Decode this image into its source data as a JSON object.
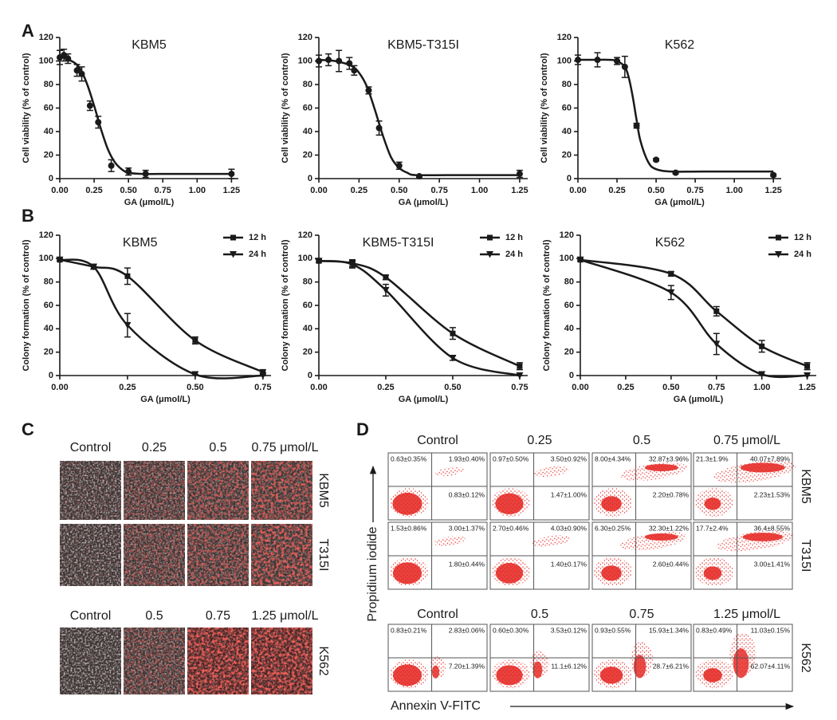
{
  "panel_labels": [
    "A",
    "B",
    "C",
    "D"
  ],
  "chart_data": [
    {
      "type": "scatter",
      "title": "KBM5",
      "x_label": "GA (μmol/L)",
      "y_label": "Cell viability (% of control)",
      "color": "#1a1a1a",
      "x": [
        0,
        0.03,
        0.06,
        0.125,
        0.16,
        0.22,
        0.28,
        0.375,
        0.5,
        0.625,
        1.25
      ],
      "values": [
        103,
        105,
        102,
        92,
        89,
        62,
        48,
        11,
        6,
        4,
        4
      ],
      "errors": [
        6,
        5,
        4,
        5,
        6,
        4,
        5,
        5,
        3,
        3,
        4
      ],
      "curve": {
        "x": [
          0,
          0.1,
          0.15,
          0.2,
          0.25,
          0.3,
          0.35,
          0.4,
          0.45,
          0.5,
          0.6,
          0.8,
          1.0,
          1.25
        ],
        "values": [
          104,
          99,
          93,
          80,
          62,
          42,
          25,
          14,
          8,
          5,
          4,
          4,
          4,
          4
        ]
      },
      "xlim": [
        0,
        1.3
      ],
      "ylim": [
        0,
        120
      ],
      "xticks": [
        {
          "value": 0,
          "label": "0.00"
        },
        {
          "value": 0.25,
          "label": "0.25"
        },
        {
          "value": 0.5,
          "label": "0.50"
        },
        {
          "value": 0.75,
          "label": "0.75"
        },
        {
          "value": 1,
          "label": "1.00"
        },
        {
          "value": 1.25,
          "label": "1.25"
        }
      ],
      "yticks": [
        0,
        20,
        40,
        60,
        80,
        100,
        120
      ]
    },
    {
      "type": "scatter",
      "title": "KBM5-T315I",
      "x_label": "GA (μmol/L)",
      "y_label": "Cell viability (% of control)",
      "color": "#1a1a1a",
      "x": [
        0,
        0.06,
        0.125,
        0.19,
        0.22,
        0.31,
        0.375,
        0.5,
        0.625,
        1.25
      ],
      "values": [
        100,
        101,
        100,
        98,
        92,
        75,
        43,
        11,
        2,
        4
      ],
      "errors": [
        5,
        5,
        9,
        5,
        4,
        3,
        6,
        3,
        1,
        3
      ],
      "curve": {
        "x": [
          0,
          0.1,
          0.2,
          0.25,
          0.3,
          0.35,
          0.4,
          0.45,
          0.5,
          0.55,
          0.6,
          0.8,
          1.25
        ],
        "values": [
          101,
          100,
          96,
          90,
          78,
          58,
          36,
          18,
          9,
          5,
          3,
          3,
          3
        ]
      },
      "xlim": [
        0,
        1.3
      ],
      "ylim": [
        0,
        120
      ],
      "xticks": [
        {
          "value": 0,
          "label": "0.00"
        },
        {
          "value": 0.25,
          "label": "0.25"
        },
        {
          "value": 0.5,
          "label": "0.50"
        },
        {
          "value": 0.75,
          "label": "0.75"
        },
        {
          "value": 1,
          "label": "1.00"
        },
        {
          "value": 1.25,
          "label": "1.25"
        }
      ],
      "yticks": [
        0,
        20,
        40,
        60,
        80,
        100,
        120
      ]
    },
    {
      "type": "scatter",
      "title": "K562",
      "x_label": "GA (μmol/L)",
      "y_label": "Cell viability (% of control)",
      "color": "#1a1a1a",
      "x": [
        0,
        0.125,
        0.25,
        0.3,
        0.375,
        0.5,
        0.625,
        1.25
      ],
      "values": [
        101,
        101,
        100,
        95,
        45,
        16,
        5,
        3
      ],
      "errors": [
        4,
        6,
        3,
        9,
        2,
        1,
        1,
        1
      ],
      "curve": {
        "x": [
          0,
          0.1,
          0.2,
          0.25,
          0.3,
          0.325,
          0.35,
          0.375,
          0.4,
          0.45,
          0.5,
          0.6,
          0.8,
          1.25
        ],
        "values": [
          101,
          101,
          101,
          100,
          95,
          86,
          70,
          50,
          32,
          14,
          8,
          6,
          6,
          6
        ]
      },
      "xlim": [
        0,
        1.3
      ],
      "ylim": [
        0,
        120
      ],
      "xticks": [
        {
          "value": 0,
          "label": "0.00"
        },
        {
          "value": 0.25,
          "label": "0.25"
        },
        {
          "value": 0.5,
          "label": "0.50"
        },
        {
          "value": 0.75,
          "label": "0.75"
        },
        {
          "value": 1,
          "label": "1.00"
        },
        {
          "value": 1.25,
          "label": "1.25"
        }
      ],
      "yticks": [
        0,
        20,
        40,
        60,
        80,
        100,
        120
      ]
    },
    {
      "type": "line",
      "title": "KBM5",
      "x_label": "GA (μmol/L)",
      "y_label": "Colony formation (% of control)",
      "legend": "upper right",
      "x": [
        0,
        0.125,
        0.25,
        0.5,
        0.75
      ],
      "series": [
        {
          "name": "12 h",
          "marker": "square",
          "color": "#1a1a1a",
          "values": [
            99,
            93,
            85,
            30,
            3
          ],
          "errors": [
            1,
            2,
            7,
            3,
            2
          ]
        },
        {
          "name": "24 h",
          "marker": "triangle",
          "color": "#1a1a1a",
          "values": [
            99,
            93,
            43,
            1,
            0
          ],
          "errors": [
            1,
            2,
            10,
            0,
            0
          ]
        }
      ],
      "xlim": [
        0,
        0.78
      ],
      "ylim": [
        0,
        120
      ],
      "xticks": [
        {
          "value": 0,
          "label": "0.00"
        },
        {
          "value": 0.25,
          "label": "0.25"
        },
        {
          "value": 0.5,
          "label": "0.50"
        },
        {
          "value": 0.75,
          "label": "0.75"
        }
      ],
      "yticks": [
        0,
        20,
        40,
        60,
        80,
        100,
        120
      ]
    },
    {
      "type": "line",
      "title": "KBM5-T315I",
      "x_label": "GA (μmol/L)",
      "y_label": "Colony formation (% of control)",
      "legend": "upper right",
      "x": [
        0,
        0.125,
        0.25,
        0.5,
        0.75
      ],
      "series": [
        {
          "name": "12 h",
          "marker": "square",
          "color": "#1a1a1a",
          "values": [
            98,
            96,
            84,
            36,
            8
          ],
          "errors": [
            1,
            3,
            2,
            5,
            3
          ]
        },
        {
          "name": "24 h",
          "marker": "triangle",
          "color": "#1a1a1a",
          "values": [
            98,
            95,
            73,
            15,
            0
          ],
          "errors": [
            1,
            3,
            5,
            2,
            0
          ]
        }
      ],
      "xlim": [
        0,
        0.78
      ],
      "ylim": [
        0,
        120
      ],
      "xticks": [
        {
          "value": 0,
          "label": "0.00"
        },
        {
          "value": 0.25,
          "label": "0.25"
        },
        {
          "value": 0.5,
          "label": "0.50"
        },
        {
          "value": 0.75,
          "label": "0.75"
        }
      ],
      "yticks": [
        0,
        20,
        40,
        60,
        80,
        100,
        120
      ]
    },
    {
      "type": "line",
      "title": "K562",
      "x_label": "GA (μmol/L)",
      "y_label": "Colony formation (% of control)",
      "legend": "upper right",
      "x": [
        0,
        0.5,
        0.75,
        1,
        1.25
      ],
      "series": [
        {
          "name": "12 h",
          "marker": "square",
          "color": "#1a1a1a",
          "values": [
            99,
            87,
            55,
            25,
            8
          ],
          "errors": [
            1,
            2,
            4,
            5,
            3
          ]
        },
        {
          "name": "24 h",
          "marker": "triangle",
          "color": "#1a1a1a",
          "values": [
            99,
            71,
            27,
            1,
            0
          ],
          "errors": [
            1,
            6,
            9,
            0,
            0
          ]
        }
      ],
      "xlim": [
        0,
        1.3
      ],
      "ylim": [
        0,
        120
      ],
      "xticks": [
        {
          "value": 0,
          "label": "0.00"
        },
        {
          "value": 0.25,
          "label": "0.25"
        },
        {
          "value": 0.5,
          "label": "0.50"
        },
        {
          "value": 0.75,
          "label": "0.75"
        },
        {
          "value": 1,
          "label": "1.00"
        },
        {
          "value": 1.25,
          "label": "1.25"
        }
      ],
      "yticks": [
        0,
        20,
        40,
        60,
        80,
        100,
        120
      ]
    }
  ],
  "panel_c": {
    "headers": [
      [
        "Control",
        "0.25",
        "0.5",
        "0.75 μmol/L"
      ],
      [
        "Control",
        "0.5",
        "0.75",
        "1.25 μmol/L"
      ]
    ],
    "rows": [
      "KBM5",
      "T315I",
      "K562"
    ]
  },
  "panel_d": {
    "headers": [
      [
        "Control",
        "0.25",
        "0.5",
        "0.75 μmol/L"
      ],
      [
        "Control",
        "0.5",
        "0.75",
        "1.25 μmol/L"
      ]
    ],
    "rows": [
      "KBM5",
      "T315I",
      "K562"
    ],
    "y_label": "Propidium iodide",
    "x_label": "Annexin V-FITC",
    "quadrants": [
      [
        [
          "0.63±0.35%",
          "1.93±0.40%",
          "0.83±0.12%"
        ],
        [
          "0.97±0.50%",
          "3.50±0.92%",
          "1.47±1.00%"
        ],
        [
          "8.00±4.34%",
          "32.87±3.96%",
          "2.20±0.78%"
        ],
        [
          "21.3±1.9%",
          "40.07±7.89%",
          "2.23±1.53%"
        ]
      ],
      [
        [
          "1.53±0.86%",
          "3.00±1.37%",
          "1.80±0.44%"
        ],
        [
          "2.70±0.46%",
          "4.03±0.90%",
          "1.40±0.17%"
        ],
        [
          "6.30±0.25%",
          "32.30±1.22%",
          "2.60±0.44%"
        ],
        [
          "17.7±2.4%",
          "36.4±8.55%",
          "3.00±1.41%"
        ]
      ],
      [
        [
          "0.83±0.21%",
          "2.83±0.06%",
          "7.20±1.39%"
        ],
        [
          "0.60±0.30%",
          "3.53±0.12%",
          "11.1±6.12%"
        ],
        [
          "0.93±0.55%",
          "15.93±1.34%",
          "28.7±6.21%"
        ],
        [
          "0.83±0.49%",
          "11.03±0.15%",
          "62.07±4.11%"
        ]
      ]
    ]
  }
}
